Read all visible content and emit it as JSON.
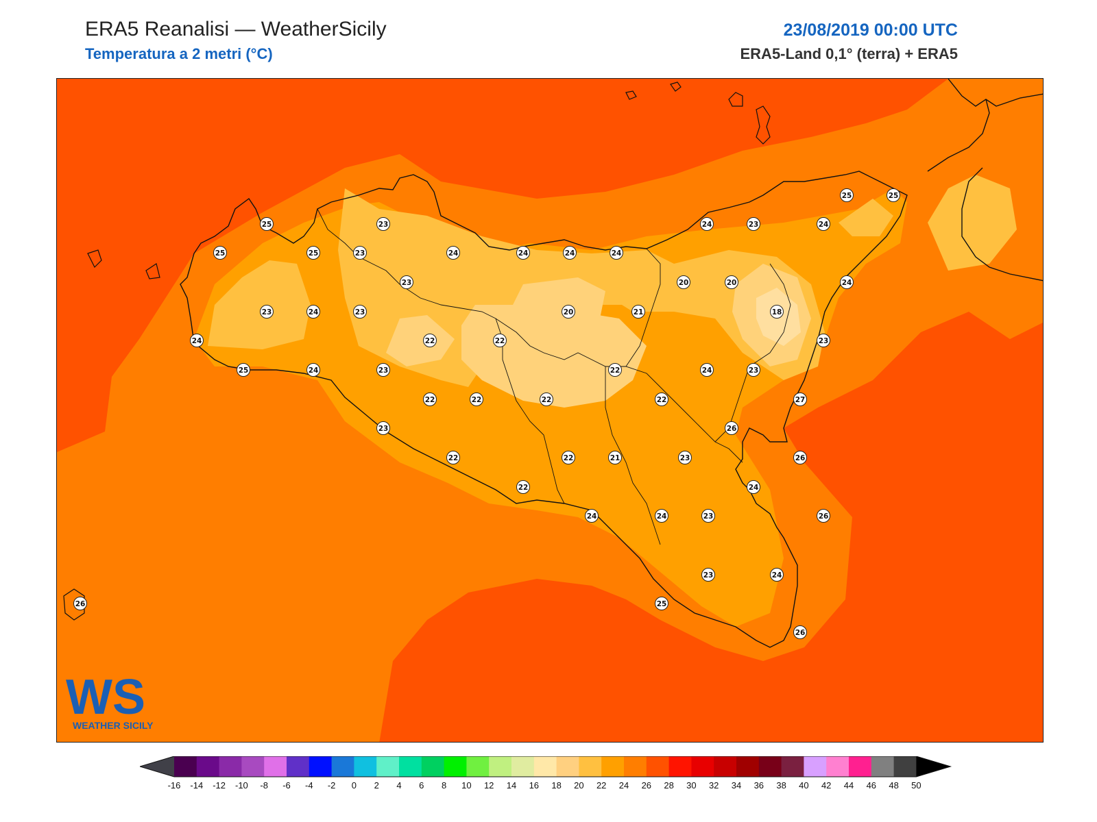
{
  "header": {
    "title": "ERA5 Reanalisi — WeatherSicily",
    "subtitle": "Temperatura a 2 metri (°C)",
    "datetime": "23/08/2019 00:00 UTC",
    "source": "ERA5-Land 0,1° (terra) + ERA5"
  },
  "logo": {
    "text": "WEATHER SICILY",
    "letters": "WS"
  },
  "colors": {
    "t28": "#ff5200",
    "t26": "#ff7e00",
    "t24": "#ffa000",
    "t22": "#ffc040",
    "t20": "#ffd27a",
    "coast": "#111111"
  },
  "stations": [
    {
      "v": "25"
    },
    {
      "v": "23"
    },
    {
      "v": "24"
    },
    {
      "v": "23"
    },
    {
      "v": "24"
    },
    {
      "v": "25"
    },
    {
      "v": "25"
    },
    {
      "v": "25"
    },
    {
      "v": "25"
    },
    {
      "v": "23"
    },
    {
      "v": "24"
    },
    {
      "v": "24"
    },
    {
      "v": "24"
    },
    {
      "v": "24"
    },
    {
      "v": "23"
    },
    {
      "v": "20"
    },
    {
      "v": "20"
    },
    {
      "v": "24"
    },
    {
      "v": "23"
    },
    {
      "v": "24"
    },
    {
      "v": "23"
    },
    {
      "v": "20"
    },
    {
      "v": "21"
    },
    {
      "v": "18"
    },
    {
      "v": "24"
    },
    {
      "v": "22"
    },
    {
      "v": "22"
    },
    {
      "v": "23"
    },
    {
      "v": "25"
    },
    {
      "v": "24"
    },
    {
      "v": "23"
    },
    {
      "v": "22"
    },
    {
      "v": "24"
    },
    {
      "v": "23"
    },
    {
      "v": "27"
    },
    {
      "v": "22"
    },
    {
      "v": "22"
    },
    {
      "v": "22"
    },
    {
      "v": "22"
    },
    {
      "v": "23"
    },
    {
      "v": "26"
    },
    {
      "v": "26"
    },
    {
      "v": "22"
    },
    {
      "v": "22"
    },
    {
      "v": "21"
    },
    {
      "v": "23"
    },
    {
      "v": "22"
    },
    {
      "v": "24"
    },
    {
      "v": "24"
    },
    {
      "v": "24"
    },
    {
      "v": "23"
    },
    {
      "v": "26"
    },
    {
      "v": "23"
    },
    {
      "v": "24"
    },
    {
      "v": "25"
    },
    {
      "v": "26"
    },
    {
      "v": "26"
    }
  ],
  "colorbar": {
    "ticks": [
      "-16",
      "-14",
      "-12",
      "-10",
      "-8",
      "-6",
      "-4",
      "-2",
      "0",
      "2",
      "4",
      "6",
      "8",
      "10",
      "12",
      "14",
      "16",
      "18",
      "20",
      "22",
      "24",
      "26",
      "28",
      "30",
      "32",
      "34",
      "36",
      "38",
      "40",
      "42",
      "44",
      "46",
      "48",
      "50"
    ],
    "colors": [
      "#4a0050",
      "#6a0a8a",
      "#8a2aa8",
      "#a84ac0",
      "#e070e8",
      "#6030c8",
      "#0010ff",
      "#1a78d8",
      "#10c0e0",
      "#60f0c8",
      "#00e0a0",
      "#00d060",
      "#00f000",
      "#70f040",
      "#c0f080",
      "#e0eca0",
      "#ffe8a8",
      "#ffd080",
      "#ffc040",
      "#ffa000",
      "#ff7e00",
      "#ff5200",
      "#ff1400",
      "#e80000",
      "#c80000",
      "#a00000",
      "#780018",
      "#7a2040",
      "#d8a0ff",
      "#ff80d0",
      "#ff2090",
      "#808080",
      "#404040"
    ],
    "under_color": "#404048",
    "over_color": "#000000"
  }
}
